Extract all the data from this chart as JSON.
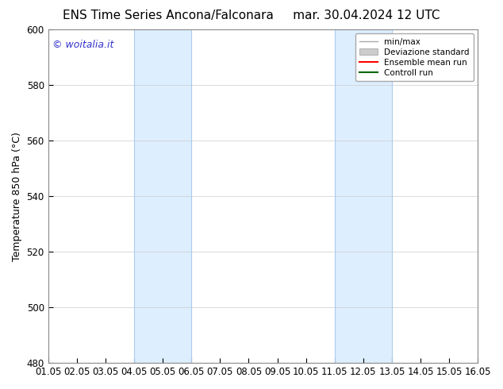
{
  "title_left": "ENS Time Series Ancona/Falconara",
  "title_right": "mar. 30.04.2024 12 UTC",
  "ylabel": "Temperature 850 hPa (°C)",
  "xlabel_ticks": [
    "01.05",
    "02.05",
    "03.05",
    "04.05",
    "05.05",
    "06.05",
    "07.05",
    "08.05",
    "09.05",
    "10.05",
    "11.05",
    "12.05",
    "13.05",
    "14.05",
    "15.05",
    "16.05"
  ],
  "xlim": [
    0,
    15
  ],
  "ylim": [
    480,
    600
  ],
  "yticks": [
    480,
    500,
    520,
    540,
    560,
    580,
    600
  ],
  "background_color": "#ffffff",
  "plot_bg_color": "#ffffff",
  "shaded_regions": [
    {
      "xmin": 3,
      "xmax": 5,
      "color": "#ddeeff"
    },
    {
      "xmin": 10,
      "xmax": 12,
      "color": "#ddeeff"
    }
  ],
  "vertical_lines": [
    {
      "x": 3,
      "color": "#aaccee",
      "lw": 0.8
    },
    {
      "x": 5,
      "color": "#aaccee",
      "lw": 0.8
    },
    {
      "x": 10,
      "color": "#aaccee",
      "lw": 0.8
    },
    {
      "x": 12,
      "color": "#aaccee",
      "lw": 0.8
    }
  ],
  "legend_entries": [
    {
      "label": "min/max",
      "color": "#aaaaaa",
      "lw": 1.0,
      "style": "line"
    },
    {
      "label": "Deviazione standard",
      "color": "#cccccc",
      "lw": 6,
      "style": "band"
    },
    {
      "label": "Ensemble mean run",
      "color": "#ff0000",
      "lw": 1.5,
      "style": "line"
    },
    {
      "label": "Controll run",
      "color": "#006600",
      "lw": 1.5,
      "style": "line"
    }
  ],
  "watermark_text": "© woitalia.it",
  "watermark_color": "#3333cc",
  "title_fontsize": 11,
  "axis_label_fontsize": 9,
  "tick_fontsize": 8.5,
  "legend_fontsize": 7.5
}
